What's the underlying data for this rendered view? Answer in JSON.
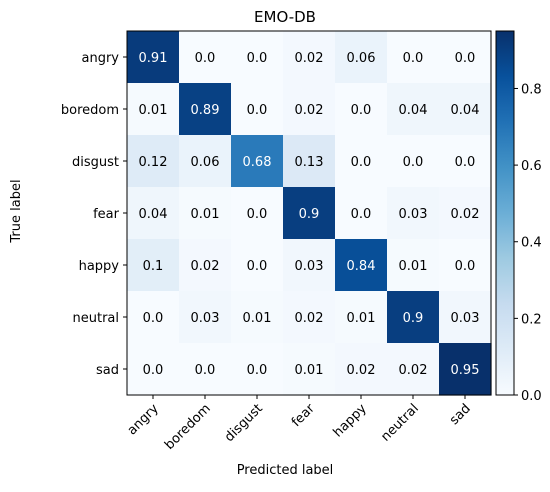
{
  "chart_data": {
    "type": "heatmap",
    "title": "EMO-DB",
    "xlabel": "Predicted label",
    "ylabel": "True label",
    "x_categories": [
      "angry",
      "boredom",
      "disgust",
      "fear",
      "happy",
      "neutral",
      "sad"
    ],
    "y_categories": [
      "angry",
      "boredom",
      "disgust",
      "fear",
      "happy",
      "neutral",
      "sad"
    ],
    "values": [
      [
        0.91,
        0.0,
        0.0,
        0.02,
        0.06,
        0.0,
        0.0
      ],
      [
        0.01,
        0.89,
        0.0,
        0.02,
        0.0,
        0.04,
        0.04
      ],
      [
        0.12,
        0.06,
        0.68,
        0.13,
        0.0,
        0.0,
        0.0
      ],
      [
        0.04,
        0.01,
        0.0,
        0.9,
        0.0,
        0.03,
        0.02
      ],
      [
        0.1,
        0.02,
        0.0,
        0.03,
        0.84,
        0.01,
        0.0
      ],
      [
        0.0,
        0.03,
        0.01,
        0.02,
        0.01,
        0.9,
        0.03
      ],
      [
        0.0,
        0.0,
        0.0,
        0.01,
        0.02,
        0.02,
        0.95
      ]
    ],
    "value_labels": [
      [
        "0.91",
        "0.0",
        "0.0",
        "0.02",
        "0.06",
        "0.0",
        "0.0"
      ],
      [
        "0.01",
        "0.89",
        "0.0",
        "0.02",
        "0.0",
        "0.04",
        "0.04"
      ],
      [
        "0.12",
        "0.06",
        "0.68",
        "0.13",
        "0.0",
        "0.0",
        "0.0"
      ],
      [
        "0.04",
        "0.01",
        "0.0",
        "0.9",
        "0.0",
        "0.03",
        "0.02"
      ],
      [
        "0.1",
        "0.02",
        "0.0",
        "0.03",
        "0.84",
        "0.01",
        "0.0"
      ],
      [
        "0.0",
        "0.03",
        "0.01",
        "0.02",
        "0.01",
        "0.9",
        "0.03"
      ],
      [
        "0.0",
        "0.0",
        "0.0",
        "0.01",
        "0.02",
        "0.02",
        "0.95"
      ]
    ],
    "colormap": "Blues",
    "colorbar": {
      "range": [
        0.0,
        0.95
      ],
      "ticks": [
        0.0,
        0.2,
        0.4,
        0.6,
        0.8
      ],
      "tick_labels": [
        "0.0",
        "0.2",
        "0.4",
        "0.6",
        "0.8"
      ]
    },
    "grid": false
  }
}
